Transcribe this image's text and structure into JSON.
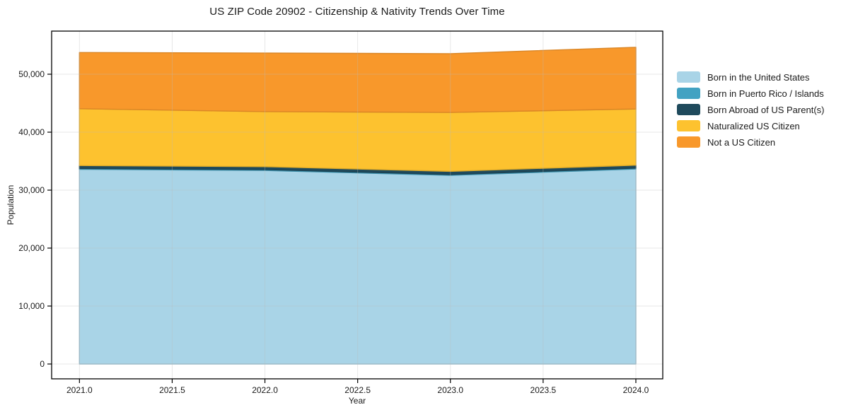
{
  "chart_data": {
    "type": "area",
    "stacked": true,
    "title": "US ZIP Code 20902 - Citizenship & Nativity Trends Over Time",
    "xlabel": "Year",
    "ylabel": "Population",
    "x": [
      2021,
      2022,
      2023,
      2024
    ],
    "series": [
      {
        "name": "Born in the United States",
        "color": "#a9d4e7",
        "values": [
          33600,
          33400,
          32550,
          33650
        ]
      },
      {
        "name": "Born in Puerto Rico / Islands",
        "color": "#42a2c2",
        "values": [
          150,
          150,
          150,
          150
        ]
      },
      {
        "name": "Born Abroad of US Parent(s)",
        "color": "#1f4a5c",
        "values": [
          500,
          500,
          550,
          500
        ]
      },
      {
        "name": "Naturalized US Citizen",
        "color": "#fdc22f",
        "values": [
          9800,
          9500,
          10150,
          9700
        ]
      },
      {
        "name": "Not a US Citizen",
        "color": "#f8982b",
        "values": [
          9700,
          10100,
          10150,
          10650
        ]
      }
    ],
    "x_ticks": [
      2021.0,
      2021.5,
      2022.0,
      2022.5,
      2023.0,
      2023.5,
      2024.0
    ],
    "x_tick_labels": [
      "2021.0",
      "2021.5",
      "2022.0",
      "2022.5",
      "2023.0",
      "2023.5",
      "2024.0"
    ],
    "y_ticks": [
      0,
      10000,
      20000,
      30000,
      40000,
      50000
    ],
    "y_tick_labels": [
      "0",
      "10,000",
      "20,000",
      "30,000",
      "40,000",
      "50,000"
    ],
    "xlim": [
      2020.85,
      2024.145
    ],
    "ylim": [
      -2560,
      57440
    ],
    "grid": true,
    "legend_position": "right",
    "background": "#ffffff",
    "spine_color": "#000000",
    "grid_color_rgba": "rgba(185,185,185,0.35)"
  }
}
